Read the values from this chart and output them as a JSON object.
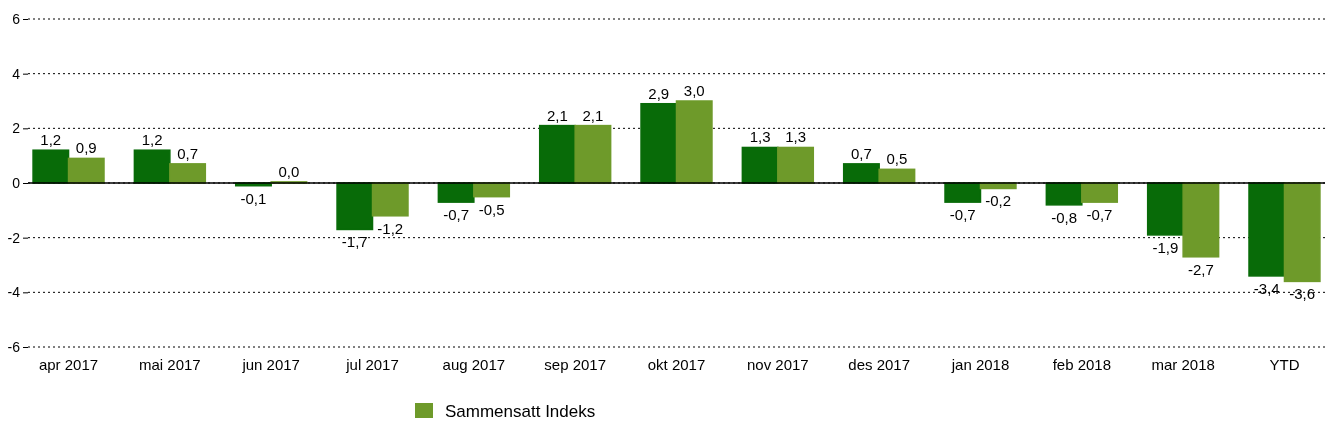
{
  "chart_data": {
    "type": "bar",
    "categories": [
      "apr 2017",
      "mai 2017",
      "jun 2017",
      "jul 2017",
      "aug 2017",
      "sep 2017",
      "okt 2017",
      "nov 2017",
      "des 2017",
      "jan 2018",
      "feb 2018",
      "mar 2018",
      "YTD"
    ],
    "series": [
      {
        "color": "#086b08",
        "values": [
          1.2,
          1.2,
          -0.1,
          -1.7,
          -0.7,
          2.1,
          2.9,
          1.3,
          0.7,
          -0.7,
          -0.8,
          -1.9,
          -3.4
        ],
        "value_labels": [
          "1,2",
          "1,2",
          "-0,1",
          "-1,7",
          "-0,7",
          "2,1",
          "2,9",
          "1,3",
          "0,7",
          "-0,7",
          "-0,8",
          "-1,9",
          "-3,4"
        ]
      },
      {
        "name": "Sammensatt Indeks",
        "color": "#6e9a2a",
        "values": [
          0.9,
          0.7,
          0.04,
          -1.2,
          -0.5,
          2.1,
          3.0,
          1.3,
          0.5,
          -0.2,
          -0.7,
          -2.7,
          -3.6
        ],
        "value_labels": [
          "0,9",
          "0,7",
          "0,0",
          "-1,2",
          "-0,5",
          "2,1",
          "3,0",
          "1,3",
          "0,5",
          "-0,2",
          "-0,7",
          "-2,7",
          "-3,6"
        ]
      }
    ],
    "ylim": [
      -6,
      6
    ],
    "yticks": [
      -6,
      -4,
      -2,
      0,
      2,
      4,
      6
    ],
    "grid": "y",
    "legend": "bottom"
  }
}
